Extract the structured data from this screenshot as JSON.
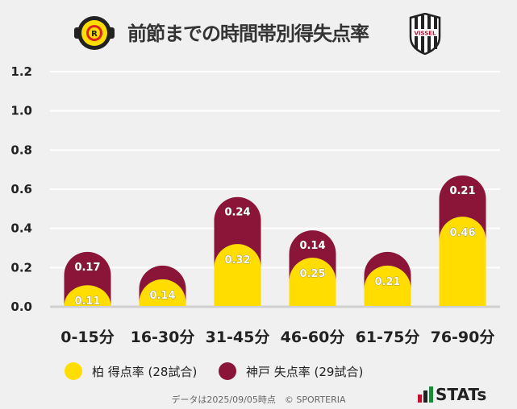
{
  "header": {
    "title": "前節までの時間帯別得失点率",
    "home_logo": "KASHIWA REYSOL",
    "away_logo": "VISSEL"
  },
  "chart_data": {
    "type": "bar",
    "stacked": true,
    "categories": [
      "0-15分",
      "16-30分",
      "31-45分",
      "46-60分",
      "61-75分",
      "76-90分"
    ],
    "series": [
      {
        "name": "柏 得点率 (28試合)",
        "color": "#ffdd00",
        "values": [
          0.11,
          0.14,
          0.32,
          0.25,
          0.21,
          0.46
        ],
        "labels": [
          "0.11",
          "0.14",
          "0.32",
          "0.25",
          "0.21",
          "0.46"
        ]
      },
      {
        "name": "神戸 失点率 (29試合)",
        "color": "#8b1538",
        "values": [
          0.17,
          0.07,
          0.24,
          0.14,
          0.07,
          0.21
        ],
        "labels": [
          "0.17",
          "",
          "0.24",
          "0.14",
          "",
          "0.21"
        ]
      }
    ],
    "ylim": [
      0,
      1.2
    ],
    "yticks": [
      "0.0",
      "0.2",
      "0.4",
      "0.6",
      "0.8",
      "1.0",
      "1.2"
    ],
    "grid": true,
    "legend": "bottom"
  },
  "footer": {
    "note": "データは2025/09/05時点　© SPORTERIA",
    "brand": "STATs"
  }
}
